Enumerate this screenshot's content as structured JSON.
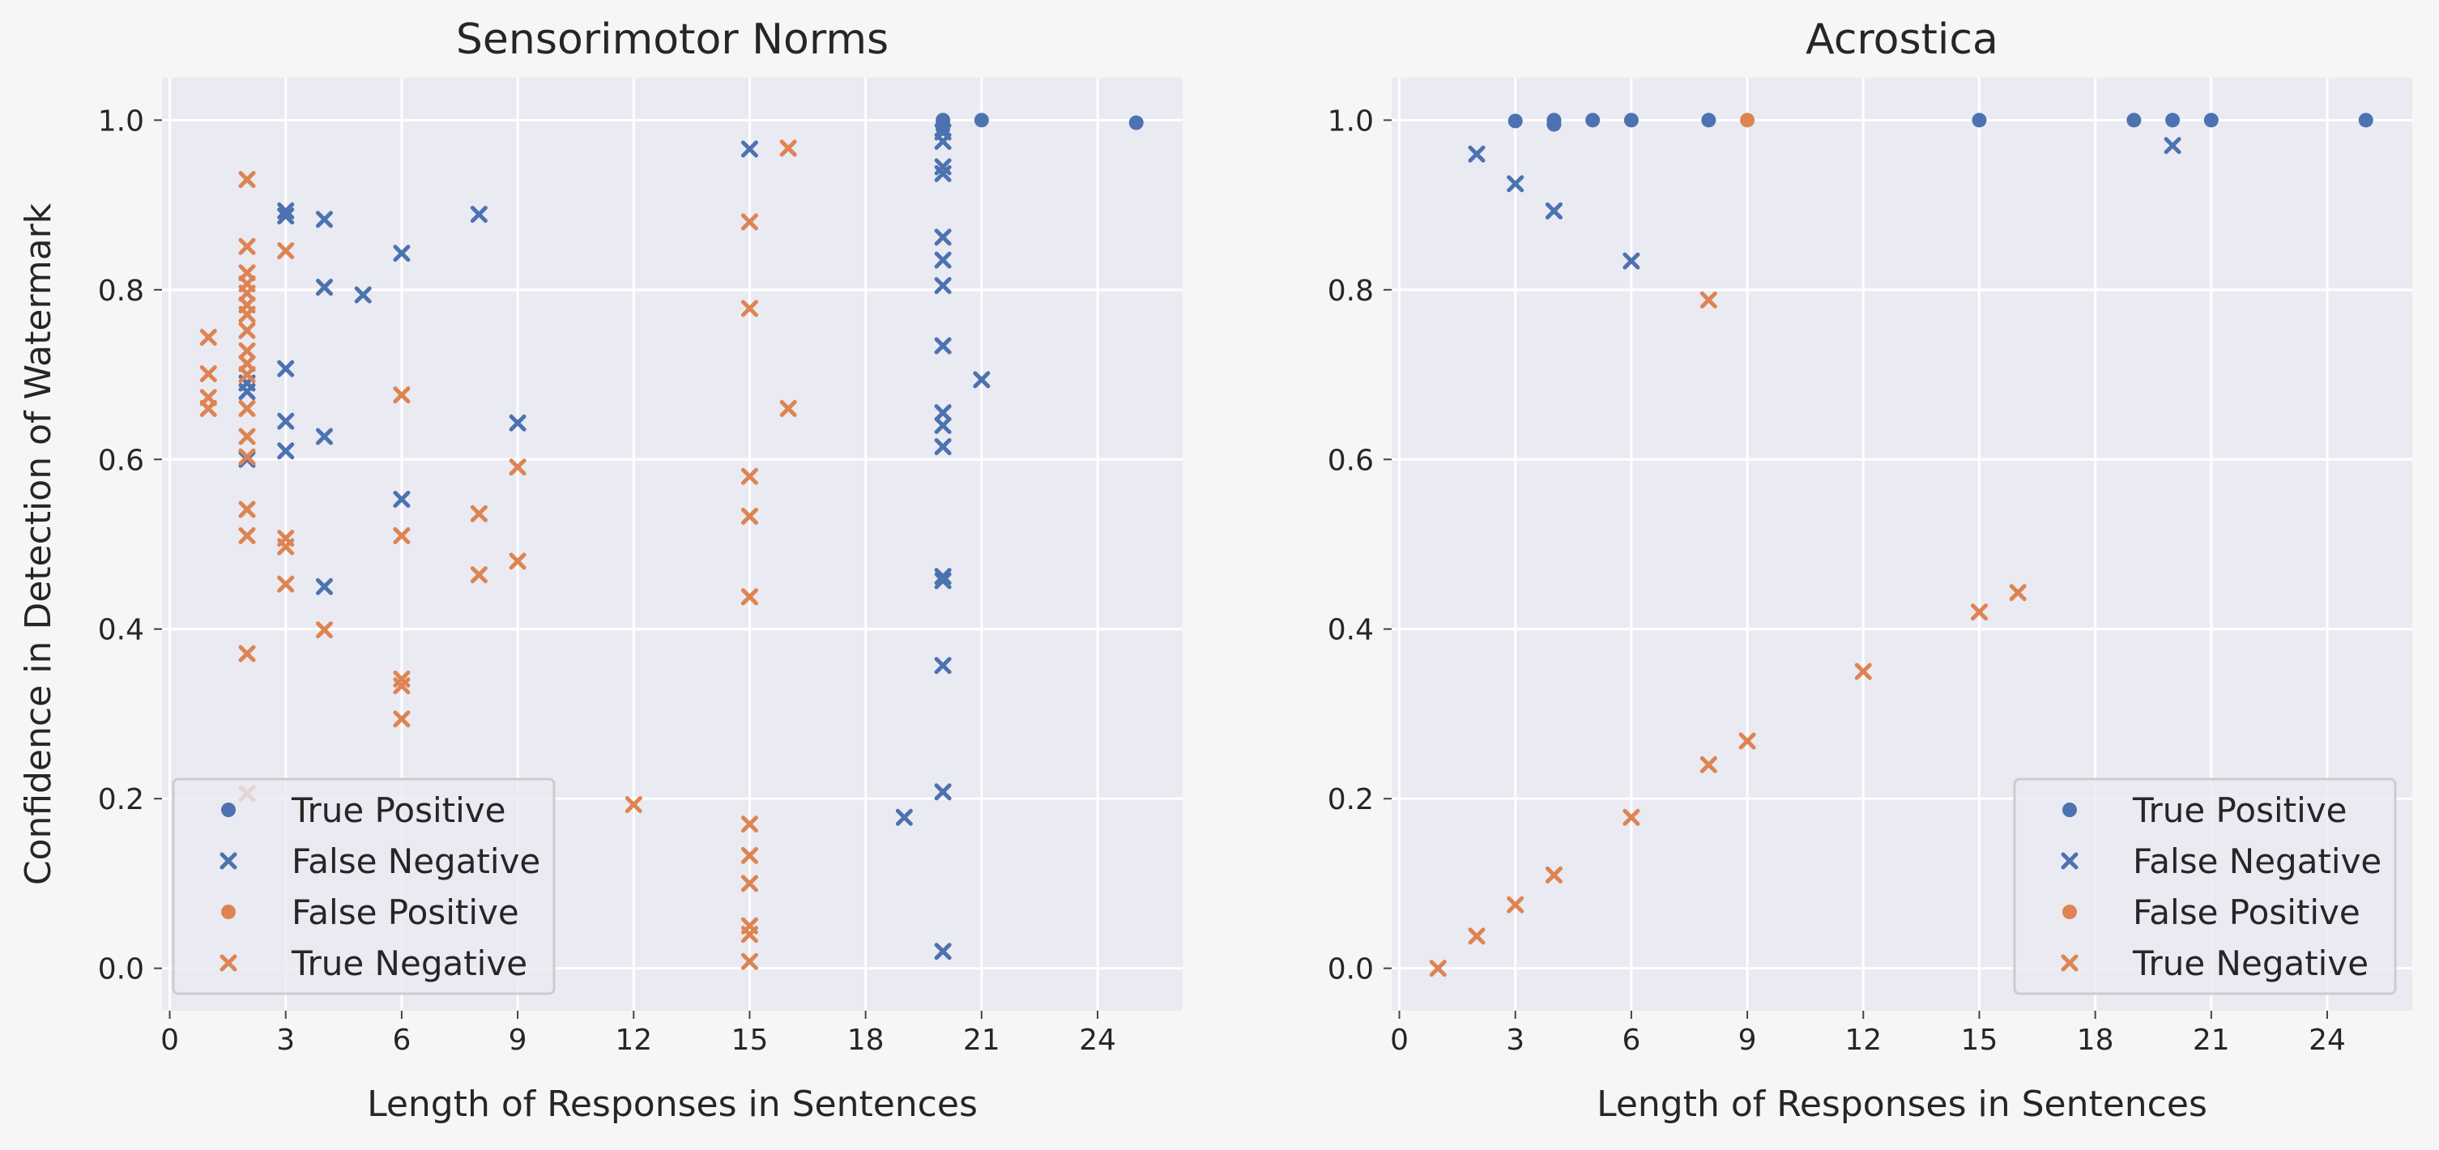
{
  "chart_data": [
    {
      "type": "scatter",
      "title": "Sensorimotor Norms",
      "xlabel": "Length of Responses in Sentences",
      "ylabel": "Confidence in Detection of Watermark",
      "xlim": [
        -0.2,
        26.2
      ],
      "ylim": [
        -0.05,
        1.05
      ],
      "xticks": [
        0,
        3,
        6,
        9,
        12,
        15,
        18,
        21,
        24
      ],
      "yticks": [
        0.0,
        0.2,
        0.4,
        0.6,
        0.8,
        1.0
      ],
      "grid": true,
      "legend_position": "lower-left",
      "series": [
        {
          "name": "True Positive",
          "marker": "circle",
          "color": "#4c72b0",
          "points": [
            [
              20,
              1.0
            ],
            [
              20,
              0.995
            ],
            [
              20,
              0.99
            ],
            [
              21,
              1.0
            ],
            [
              25,
              0.997
            ]
          ]
        },
        {
          "name": "False Negative",
          "marker": "x",
          "color": "#4c72b0",
          "points": [
            [
              2,
              0.69
            ],
            [
              2,
              0.68
            ],
            [
              2,
              0.6
            ],
            [
              3,
              0.893
            ],
            [
              3,
              0.887
            ],
            [
              3,
              0.707
            ],
            [
              3,
              0.645
            ],
            [
              3,
              0.61
            ],
            [
              4,
              0.883
            ],
            [
              4,
              0.803
            ],
            [
              4,
              0.627
            ],
            [
              4,
              0.45
            ],
            [
              5,
              0.794
            ],
            [
              6,
              0.843
            ],
            [
              6,
              0.553
            ],
            [
              8,
              0.889
            ],
            [
              9,
              0.643
            ],
            [
              15,
              0.966
            ],
            [
              19,
              0.178
            ],
            [
              20,
              0.986
            ],
            [
              20,
              0.975
            ],
            [
              20,
              0.945
            ],
            [
              20,
              0.937
            ],
            [
              20,
              0.862
            ],
            [
              20,
              0.835
            ],
            [
              20,
              0.805
            ],
            [
              20,
              0.734
            ],
            [
              20,
              0.655
            ],
            [
              20,
              0.64
            ],
            [
              20,
              0.615
            ],
            [
              20,
              0.462
            ],
            [
              20,
              0.457
            ],
            [
              20,
              0.357
            ],
            [
              20,
              0.208
            ],
            [
              20,
              0.02
            ],
            [
              21,
              0.694
            ]
          ]
        },
        {
          "name": "False Positive",
          "marker": "circle",
          "color": "#dd8452",
          "points": []
        },
        {
          "name": "True Negative",
          "marker": "x",
          "color": "#dd8452",
          "points": [
            [
              1,
              0.744
            ],
            [
              1,
              0.701
            ],
            [
              1,
              0.673
            ],
            [
              1,
              0.66
            ],
            [
              2,
              0.93
            ],
            [
              2,
              0.851
            ],
            [
              2,
              0.82
            ],
            [
              2,
              0.807
            ],
            [
              2,
              0.796
            ],
            [
              2,
              0.782
            ],
            [
              2,
              0.771
            ],
            [
              2,
              0.752
            ],
            [
              2,
              0.728
            ],
            [
              2,
              0.713
            ],
            [
              2,
              0.7
            ],
            [
              2,
              0.66
            ],
            [
              2,
              0.627
            ],
            [
              2,
              0.603
            ],
            [
              2,
              0.541
            ],
            [
              2,
              0.51
            ],
            [
              2,
              0.371
            ],
            [
              2,
              0.206
            ],
            [
              3,
              0.846
            ],
            [
              3,
              0.507
            ],
            [
              3,
              0.497
            ],
            [
              3,
              0.453
            ],
            [
              4,
              0.399
            ],
            [
              6,
              0.676
            ],
            [
              6,
              0.51
            ],
            [
              6,
              0.341
            ],
            [
              6,
              0.333
            ],
            [
              6,
              0.294
            ],
            [
              8,
              0.536
            ],
            [
              8,
              0.464
            ],
            [
              9,
              0.591
            ],
            [
              9,
              0.48
            ],
            [
              12,
              0.193
            ],
            [
              15,
              0.88
            ],
            [
              15,
              0.778
            ],
            [
              15,
              0.58
            ],
            [
              15,
              0.533
            ],
            [
              15,
              0.438
            ],
            [
              15,
              0.17
            ],
            [
              15,
              0.133
            ],
            [
              15,
              0.1
            ],
            [
              15,
              0.05
            ],
            [
              15,
              0.04
            ],
            [
              15,
              0.008
            ],
            [
              16,
              0.967
            ],
            [
              16,
              0.66
            ]
          ]
        }
      ]
    },
    {
      "type": "scatter",
      "title": "Acrostica",
      "xlabel": "Length of Responses in Sentences",
      "ylabel": "",
      "xlim": [
        -0.2,
        26.2
      ],
      "ylim": [
        -0.05,
        1.05
      ],
      "xticks": [
        0,
        3,
        6,
        9,
        12,
        15,
        18,
        21,
        24
      ],
      "yticks": [
        0.0,
        0.2,
        0.4,
        0.6,
        0.8,
        1.0
      ],
      "grid": true,
      "legend_position": "lower-right",
      "series": [
        {
          "name": "True Positive",
          "marker": "circle",
          "color": "#4c72b0",
          "points": [
            [
              3,
              0.999
            ],
            [
              4,
              1.0
            ],
            [
              4,
              0.995
            ],
            [
              5,
              1.0
            ],
            [
              6,
              1.0
            ],
            [
              8,
              1.0
            ],
            [
              15,
              1.0
            ],
            [
              19,
              1.0
            ],
            [
              20,
              1.0
            ],
            [
              21,
              1.0
            ],
            [
              25,
              1.0
            ]
          ]
        },
        {
          "name": "False Negative",
          "marker": "x",
          "color": "#4c72b0",
          "points": [
            [
              2,
              0.96
            ],
            [
              3,
              0.925
            ],
            [
              4,
              0.893
            ],
            [
              6,
              0.834
            ],
            [
              20,
              0.97
            ]
          ]
        },
        {
          "name": "False Positive",
          "marker": "circle",
          "color": "#dd8452",
          "points": [
            [
              9,
              1.0
            ]
          ]
        },
        {
          "name": "True Negative",
          "marker": "x",
          "color": "#dd8452",
          "points": [
            [
              1,
              0.0
            ],
            [
              2,
              0.038
            ],
            [
              3,
              0.075
            ],
            [
              4,
              0.11
            ],
            [
              6,
              0.178
            ],
            [
              8,
              0.788
            ],
            [
              8,
              0.24
            ],
            [
              9,
              0.268
            ],
            [
              12,
              0.35
            ],
            [
              15,
              0.42
            ],
            [
              16,
              0.443
            ]
          ]
        }
      ]
    }
  ]
}
